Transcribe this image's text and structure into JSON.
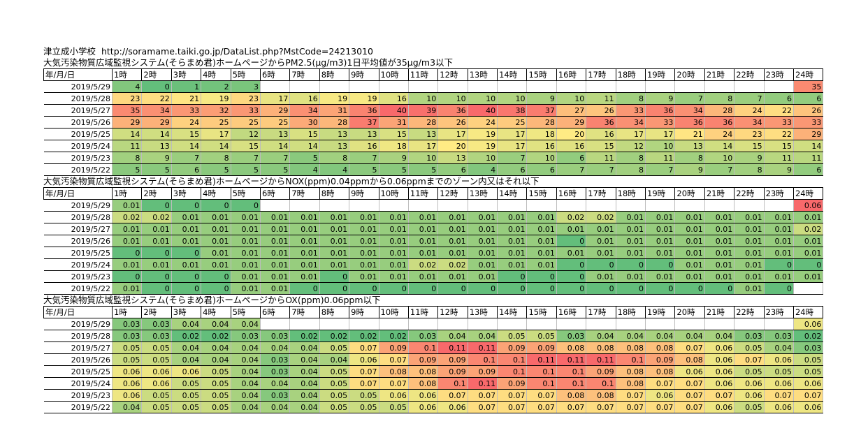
{
  "header": {
    "station": "津立成小学校",
    "url": "http://soramame.taiki.go.jp/DataList.php?MstCode=24213010"
  },
  "columns": {
    "date_header": "年/月/日",
    "hours": [
      "1時",
      "2時",
      "3時",
      "4時",
      "5時",
      "6時",
      "7時",
      "8時",
      "9時",
      "10時",
      "11時",
      "12時",
      "13時",
      "14時",
      "15時",
      "16時",
      "17時",
      "18時",
      "19時",
      "20時",
      "21時",
      "22時",
      "23時",
      "24時"
    ]
  },
  "sections": [
    {
      "title": "大気汚染物質広域監視システム(そらまめ君)ホームページからPM2.5(μg/m3)1日平均値が35μg/m3以下",
      "metric": "pm25",
      "rows": [
        {
          "date": "2019/5/29",
          "values": [
            "4",
            "0",
            "1",
            "2",
            "3",
            "",
            "",
            "",
            "",
            "",
            "",
            "",
            "",
            "",
            "",
            "",
            "",
            "",
            "",
            "",
            "",
            "",
            "",
            "35"
          ]
        },
        {
          "date": "2019/5/28",
          "values": [
            "23",
            "22",
            "21",
            "19",
            "23",
            "17",
            "16",
            "19",
            "19",
            "16",
            "10",
            "10",
            "10",
            "10",
            "9",
            "10",
            "11",
            "8",
            "9",
            "7",
            "8",
            "7",
            "6",
            "6"
          ]
        },
        {
          "date": "2019/5/27",
          "values": [
            "35",
            "34",
            "33",
            "32",
            "33",
            "29",
            "34",
            "31",
            "36",
            "40",
            "39",
            "36",
            "40",
            "38",
            "37",
            "27",
            "26",
            "33",
            "36",
            "34",
            "28",
            "24",
            "22",
            "26"
          ]
        },
        {
          "date": "2019/5/26",
          "values": [
            "29",
            "29",
            "24",
            "25",
            "25",
            "25",
            "30",
            "28",
            "37",
            "31",
            "28",
            "26",
            "24",
            "25",
            "28",
            "29",
            "36",
            "34",
            "33",
            "36",
            "36",
            "34",
            "33",
            "33"
          ]
        },
        {
          "date": "2019/5/25",
          "values": [
            "14",
            "14",
            "15",
            "17",
            "12",
            "13",
            "15",
            "13",
            "13",
            "15",
            "13",
            "17",
            "19",
            "17",
            "18",
            "20",
            "16",
            "17",
            "17",
            "21",
            "24",
            "23",
            "22",
            "29"
          ]
        },
        {
          "date": "2019/5/24",
          "values": [
            "11",
            "13",
            "14",
            "14",
            "15",
            "14",
            "14",
            "13",
            "16",
            "18",
            "17",
            "20",
            "19",
            "17",
            "16",
            "16",
            "15",
            "12",
            "10",
            "13",
            "14",
            "15",
            "15",
            "14"
          ]
        },
        {
          "date": "2019/5/23",
          "values": [
            "8",
            "9",
            "7",
            "8",
            "7",
            "7",
            "5",
            "8",
            "7",
            "9",
            "10",
            "13",
            "10",
            "7",
            "10",
            "6",
            "11",
            "8",
            "11",
            "8",
            "10",
            "9",
            "11",
            "11"
          ]
        },
        {
          "date": "2019/5/22",
          "values": [
            "5",
            "5",
            "6",
            "5",
            "5",
            "5",
            "4",
            "4",
            "5",
            "5",
            "5",
            "6",
            "4",
            "6",
            "6",
            "7",
            "7",
            "8",
            "7",
            "9",
            "7",
            "8",
            "9",
            "6"
          ]
        }
      ]
    },
    {
      "title": "大気汚染物質広域監視システム(そらまめ君)ホームページからNOX(ppm)0.04ppmから0.06ppmまでのゾーン内又はそれ以下",
      "metric": "nox",
      "rows": [
        {
          "date": "2019/5/29",
          "values": [
            "0.01",
            "0",
            "0",
            "0",
            "0",
            "",
            "",
            "",
            "",
            "",
            "",
            "",
            "",
            "",
            "",
            "",
            "",
            "",
            "",
            "",
            "",
            "",
            "",
            "0.06"
          ]
        },
        {
          "date": "2019/5/28",
          "values": [
            "0.02",
            "0.02",
            "0.01",
            "0.01",
            "0.01",
            "0.01",
            "0.01",
            "0.01",
            "0.01",
            "0.01",
            "0.01",
            "0.01",
            "0.01",
            "0.01",
            "0.01",
            "0.02",
            "0.02",
            "0.01",
            "0.01",
            "0.01",
            "0.01",
            "0.01",
            "0.01",
            "0.01"
          ]
        },
        {
          "date": "2019/5/27",
          "values": [
            "0.01",
            "0.01",
            "0.01",
            "0.01",
            "0.01",
            "0.01",
            "0.01",
            "0.01",
            "0.01",
            "0.01",
            "0.01",
            "0.01",
            "0.01",
            "0.01",
            "0.01",
            "0.01",
            "0.01",
            "0.01",
            "0.01",
            "0.01",
            "0.01",
            "0.01",
            "0.01",
            "0.02"
          ]
        },
        {
          "date": "2019/5/26",
          "values": [
            "0.01",
            "0.01",
            "0.01",
            "0.01",
            "0.01",
            "0.01",
            "0.01",
            "0.01",
            "0.01",
            "0.01",
            "0.01",
            "0.01",
            "0.01",
            "0.01",
            "0.01",
            "0",
            "0.01",
            "0.01",
            "0.01",
            "0.01",
            "0.01",
            "0.01",
            "0.01",
            "0.01"
          ]
        },
        {
          "date": "2019/5/25",
          "values": [
            "0",
            "0",
            "0",
            "0.01",
            "0.01",
            "0.01",
            "0.01",
            "0.01",
            "0.01",
            "0.01",
            "0.01",
            "0.01",
            "0.01",
            "0.01",
            "0.01",
            "0.01",
            "0.01",
            "0.01",
            "0.01",
            "0.01",
            "0.01",
            "0.01",
            "0.01",
            "0.01"
          ]
        },
        {
          "date": "2019/5/24",
          "values": [
            "0.01",
            "0.01",
            "0.01",
            "0.01",
            "0.01",
            "0.01",
            "0.01",
            "0.01",
            "0.01",
            "0.01",
            "0.02",
            "0.02",
            "0.01",
            "0.01",
            "0.01",
            "0",
            "0",
            "0",
            "0",
            "0.01",
            "0.01",
            "0.01",
            "0",
            "0"
          ]
        },
        {
          "date": "2019/5/23",
          "values": [
            "0",
            "0",
            "0",
            "0",
            "0.01",
            "0.01",
            "0.01",
            "0",
            "0.01",
            "0.01",
            "0.01",
            "0.01",
            "0.01",
            "0",
            "0",
            "0",
            "0.01",
            "0.01",
            "0.01",
            "0.01",
            "0.01",
            "0.01",
            "0.01",
            "0.01"
          ]
        },
        {
          "date": "2019/5/22",
          "values": [
            "0.01",
            "0",
            "0",
            "0",
            "0.01",
            "0.01",
            "0",
            "0",
            "0",
            "0",
            "0",
            "0",
            "0",
            "0",
            "0",
            "0",
            "0",
            "0",
            "0",
            "0",
            "0",
            "0.01",
            "0",
            ""
          ]
        }
      ]
    },
    {
      "title": "大気汚染物質広域監視システム(そらまめ君)ホームページからOX(ppm)0.06ppm以下",
      "metric": "ox",
      "rows": [
        {
          "date": "2019/5/29",
          "values": [
            "0.03",
            "0.03",
            "0.04",
            "0.04",
            "0.04",
            "",
            "",
            "",
            "",
            "",
            "",
            "",
            "",
            "",
            "",
            "",
            "",
            "",
            "",
            "",
            "",
            "",
            "",
            "0.06"
          ]
        },
        {
          "date": "2019/5/28",
          "values": [
            "0.03",
            "0.03",
            "0.02",
            "0.02",
            "0.03",
            "0.03",
            "0.02",
            "0.02",
            "0.02",
            "0.02",
            "0.03",
            "0.04",
            "0.04",
            "0.05",
            "0.05",
            "0.03",
            "0.04",
            "0.04",
            "0.04",
            "0.04",
            "0.04",
            "0.03",
            "0.03",
            "0.02"
          ]
        },
        {
          "date": "2019/5/27",
          "values": [
            "0.05",
            "0.05",
            "0.04",
            "0.04",
            "0.04",
            "0.04",
            "0.04",
            "0.05",
            "0.07",
            "0.09",
            "0.1",
            "0.11",
            "0.11",
            "0.09",
            "0.09",
            "0.08",
            "0.08",
            "0.08",
            "0.08",
            "0.07",
            "0.06",
            "0.05",
            "0.04",
            "0.03"
          ]
        },
        {
          "date": "2019/5/26",
          "values": [
            "0.05",
            "0.05",
            "0.04",
            "0.04",
            "0.04",
            "0.03",
            "0.04",
            "0.04",
            "0.06",
            "0.07",
            "0.09",
            "0.09",
            "0.1",
            "0.1",
            "0.11",
            "0.11",
            "0.11",
            "0.1",
            "0.09",
            "0.08",
            "0.06",
            "0.07",
            "0.06",
            "0.05"
          ]
        },
        {
          "date": "2019/5/25",
          "values": [
            "0.06",
            "0.06",
            "0.06",
            "0.05",
            "0.04",
            "0.03",
            "0.04",
            "0.05",
            "0.07",
            "0.08",
            "0.08",
            "0.09",
            "0.09",
            "0.1",
            "0.1",
            "0.1",
            "0.09",
            "0.08",
            "0.08",
            "0.06",
            "0.06",
            "0.05",
            "0.05",
            "0.05"
          ]
        },
        {
          "date": "2019/5/24",
          "values": [
            "0.06",
            "0.06",
            "0.05",
            "0.05",
            "0.04",
            "0.04",
            "0.04",
            "0.05",
            "0.07",
            "0.07",
            "0.08",
            "0.1",
            "0.11",
            "0.09",
            "0.1",
            "0.1",
            "0.1",
            "0.08",
            "0.07",
            "0.07",
            "0.06",
            "0.06",
            "0.06",
            "0.06"
          ]
        },
        {
          "date": "2019/5/23",
          "values": [
            "0.06",
            "0.05",
            "0.05",
            "0.05",
            "0.04",
            "0.03",
            "0.04",
            "0.05",
            "0.05",
            "0.06",
            "0.06",
            "0.07",
            "0.07",
            "0.07",
            "0.07",
            "0.08",
            "0.08",
            "0.07",
            "0.06",
            "0.07",
            "0.07",
            "0.06",
            "0.07",
            "0.07"
          ]
        },
        {
          "date": "2019/5/22",
          "values": [
            "0.04",
            "0.05",
            "0.05",
            "0.05",
            "0.04",
            "0.04",
            "0.04",
            "0.05",
            "0.05",
            "0.05",
            "0.06",
            "0.06",
            "0.07",
            "0.07",
            "0.07",
            "0.07",
            "0.07",
            "0.07",
            "0.07",
            "0.07",
            "0.06",
            "0.05",
            "0.06",
            "0.06"
          ]
        }
      ]
    }
  ]
}
